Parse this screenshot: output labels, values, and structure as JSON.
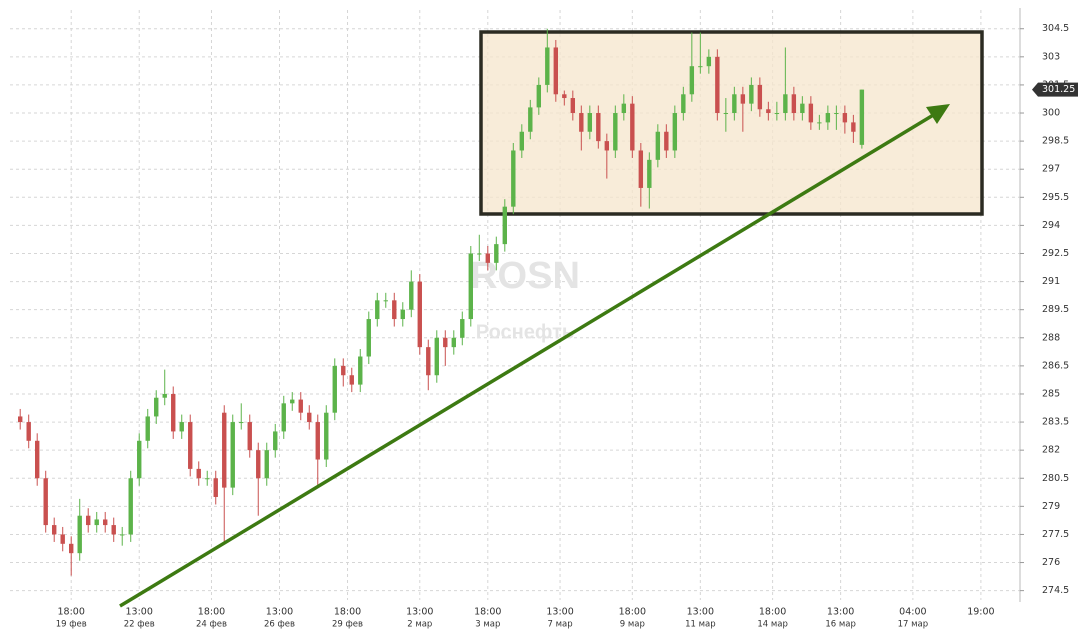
{
  "chart_data": {
    "type": "candlestick",
    "watermark": "ROSN",
    "watermark_subtitle": "Роснефть",
    "open": [
      283.8,
      283.5,
      282.5,
      280.5,
      278,
      277.5,
      277,
      276.5,
      278.5,
      278,
      278.3,
      278,
      277.5,
      277.5,
      280.5,
      282.5,
      283.8,
      284.8,
      285,
      283,
      283.5,
      281,
      280.5,
      280.5,
      284,
      280,
      283.5,
      283.5,
      282,
      280.5,
      282,
      283,
      284.5,
      284.7,
      284,
      283.5,
      281.5,
      284,
      286.5,
      286,
      285.5,
      287,
      289,
      290,
      290,
      289,
      289.5,
      291,
      287.5,
      286,
      288,
      287.5,
      288,
      289,
      292.5,
      292.5,
      292,
      293,
      295,
      298,
      299,
      300.3,
      301.5,
      303.5,
      301,
      300.8,
      300,
      299,
      300,
      298.5,
      298,
      300,
      300.5,
      298,
      296,
      297.5,
      299,
      298,
      300,
      301,
      302.5,
      302.5,
      303,
      300,
      300,
      301,
      300.5,
      301.5,
      300.2,
      300,
      300,
      301,
      300,
      300.5,
      299.5,
      299.5,
      300,
      300,
      299.5,
      298.3
    ],
    "high": [
      284.2,
      283.9,
      282.9,
      280.9,
      278.4,
      277.9,
      277.4,
      279.4,
      278.9,
      278.7,
      278.7,
      278.4,
      277.9,
      280.9,
      282.9,
      284.2,
      285.2,
      286.3,
      285.4,
      283.9,
      283.9,
      281.4,
      280.9,
      280.9,
      284.4,
      283.9,
      284.5,
      283.9,
      282.4,
      282.4,
      283.4,
      284.9,
      285.1,
      285.1,
      284.4,
      283.9,
      284.4,
      286.9,
      286.9,
      286.4,
      287.4,
      289.4,
      290.4,
      290.4,
      290.4,
      289.9,
      291.6,
      291.4,
      287.9,
      288.4,
      288.4,
      288.4,
      289.4,
      292.9,
      293.5,
      292.9,
      293.4,
      295.4,
      298.4,
      299.4,
      300.7,
      301.9,
      304.5,
      303.9,
      301.2,
      301.2,
      300.4,
      300.4,
      300.4,
      298.9,
      300.4,
      301,
      300.9,
      298.4,
      297.9,
      299.4,
      299.4,
      300.4,
      301.4,
      304.3,
      304.3,
      303.4,
      303.4,
      300.8,
      301.4,
      301.4,
      301.9,
      301.9,
      300.6,
      300.6,
      303.5,
      301.4,
      300.9,
      300.9,
      299.9,
      300.4,
      300.4,
      300.4,
      299.9,
      301.25
    ],
    "low": [
      283.1,
      282.1,
      280.1,
      277.6,
      277.1,
      276.6,
      275.3,
      276.1,
      277.6,
      277.6,
      277.6,
      277.1,
      276.9,
      277.1,
      280.1,
      282.1,
      283.4,
      284.4,
      282.6,
      282.6,
      280.6,
      280.1,
      280.1,
      279.1,
      277,
      279.6,
      283.1,
      281.6,
      278.5,
      280.1,
      281.6,
      282.6,
      284.1,
      283.6,
      283.1,
      280,
      281.1,
      283.6,
      285.4,
      285.1,
      285.1,
      286.6,
      288.6,
      289.6,
      288.6,
      288.6,
      289.1,
      287.1,
      285.2,
      285.6,
      286.5,
      287.1,
      287.6,
      288.6,
      292.1,
      291.6,
      291.6,
      292.6,
      294.6,
      297.6,
      298.6,
      299.9,
      301.1,
      300.6,
      300.4,
      299.6,
      298,
      298.6,
      298.1,
      296.5,
      297.6,
      299.6,
      297.6,
      295,
      294.9,
      297.1,
      297.6,
      297.6,
      299.6,
      300.6,
      302.1,
      302.1,
      299.6,
      299,
      299.6,
      299,
      300.1,
      299.8,
      299.6,
      299.6,
      299.6,
      299.6,
      299.6,
      299.1,
      299.1,
      299.1,
      299.1,
      298.9,
      298.4,
      298.1
    ],
    "close": [
      283.5,
      282.5,
      280.5,
      278,
      277.5,
      277,
      276.5,
      278.5,
      278,
      278.3,
      278,
      277.5,
      277.5,
      280.5,
      282.5,
      283.8,
      284.8,
      285,
      283,
      283.5,
      281,
      280.5,
      280.5,
      279.5,
      280,
      283.5,
      283.5,
      282,
      280.5,
      282,
      283,
      284.5,
      284.7,
      284,
      283.5,
      281.5,
      284,
      286.5,
      286,
      285.5,
      287,
      289,
      290,
      290,
      289,
      289.5,
      291,
      287.5,
      286,
      288,
      287.5,
      288,
      289,
      292.5,
      292.5,
      292,
      293,
      295,
      298,
      299,
      300.3,
      301.5,
      303.5,
      301,
      300.8,
      300,
      299,
      300,
      298.5,
      298,
      300,
      300.5,
      298,
      296,
      297.5,
      299,
      298,
      300,
      301,
      302.5,
      302.5,
      303,
      300,
      300,
      301,
      300.5,
      301.5,
      300.2,
      300,
      300,
      301,
      300,
      300.5,
      299.5,
      299.5,
      300,
      300,
      299.5,
      299,
      301.25
    ],
    "up_color": "#5cb34a",
    "down_color": "#c9504f",
    "ylim": [
      274,
      305.5
    ],
    "yticks": [
      274.5,
      276,
      {
        "value": 277.5,
        "label": "277.5"
      },
      279,
      280.5,
      282,
      283.5,
      285,
      286.5,
      288,
      289.5,
      291,
      292.5,
      294,
      295.5,
      297,
      298.5,
      300,
      301.5,
      303,
      304.5
    ],
    "xlim": [
      -1.2,
      117.6
    ],
    "xticks": [
      {
        "value": 6,
        "label": "18:00",
        "date": "19 фев"
      },
      {
        "value": 14,
        "label": "13:00",
        "date": "22 фев"
      },
      {
        "value": 22.5,
        "label": "18:00",
        "date": "24 фев"
      },
      {
        "value": 30.5,
        "label": "13:00",
        "date": "26 фев"
      },
      {
        "value": 38.5,
        "label": "18:00",
        "date": "29 фев"
      },
      {
        "value": 47,
        "label": "13:00",
        "date": "2 мар"
      },
      {
        "value": 55,
        "label": "18:00",
        "date": "3 мар"
      },
      {
        "value": 63.5,
        "label": "13:00",
        "date": "7 мар"
      },
      {
        "value": 72,
        "label": "18:00",
        "date": "9 мар"
      },
      {
        "value": 80,
        "label": "13:00",
        "date": "11 мар"
      },
      {
        "value": 88.5,
        "label": "18:00",
        "date": "14 мар"
      },
      {
        "value": 96.5,
        "label": "13:00",
        "date": "16 мар"
      },
      {
        "value": 105,
        "label": "04:00",
        "date": "17 мар"
      },
      {
        "value": 113,
        "label": "19:00"
      }
    ],
    "grid": true
  }
}
